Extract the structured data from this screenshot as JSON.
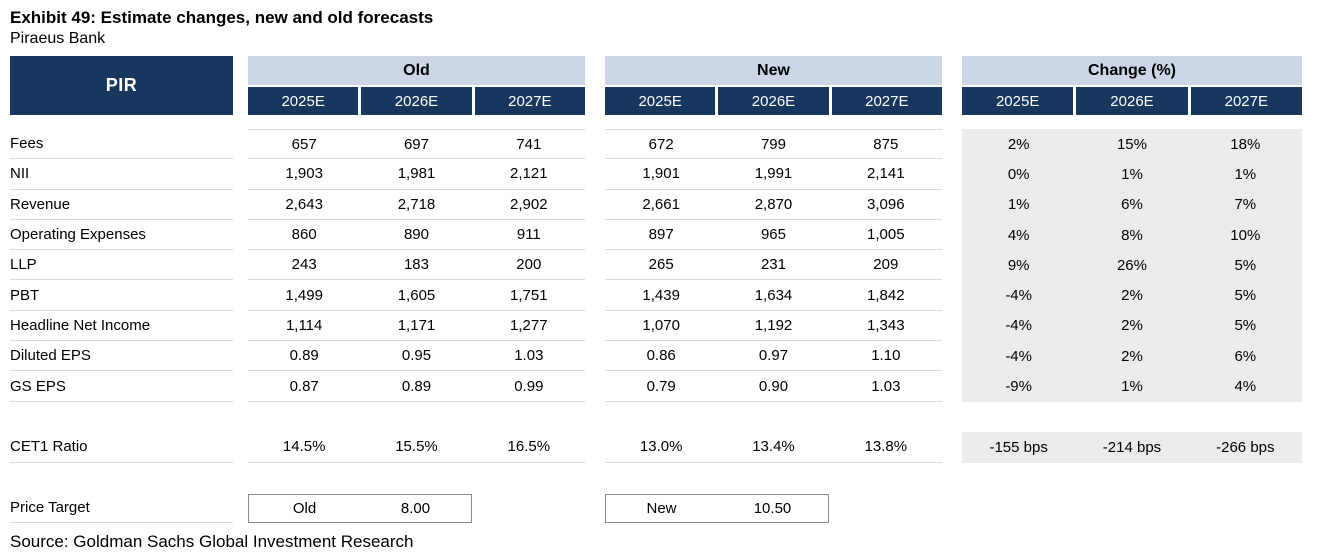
{
  "title": "Exhibit 49: Estimate changes, new and old forecasts",
  "subtitle": "Piraeus Bank",
  "source": "Source: Goldman Sachs Global Investment Research",
  "colors": {
    "navy": "#17375E",
    "band_blue": "#CCD6E6",
    "change_bg": "#EBEBEB",
    "row_line": "#D9D9D9",
    "box_border": "#8C8C8C"
  },
  "table": {
    "ticker": "PIR",
    "groups": [
      {
        "label": "Old",
        "years": [
          "2025E",
          "2026E",
          "2027E"
        ]
      },
      {
        "label": "New",
        "years": [
          "2025E",
          "2026E",
          "2027E"
        ]
      },
      {
        "label": "Change (%)",
        "years": [
          "2025E",
          "2026E",
          "2027E"
        ]
      }
    ],
    "rows": [
      {
        "label": "Fees",
        "old": [
          "657",
          "697",
          "741"
        ],
        "new": [
          "672",
          "799",
          "875"
        ],
        "change": [
          "2%",
          "15%",
          "18%"
        ]
      },
      {
        "label": "NII",
        "old": [
          "1,903",
          "1,981",
          "2,121"
        ],
        "new": [
          "1,901",
          "1,991",
          "2,141"
        ],
        "change": [
          "0%",
          "1%",
          "1%"
        ]
      },
      {
        "label": "Revenue",
        "old": [
          "2,643",
          "2,718",
          "2,902"
        ],
        "new": [
          "2,661",
          "2,870",
          "3,096"
        ],
        "change": [
          "1%",
          "6%",
          "7%"
        ]
      },
      {
        "label": "Operating Expenses",
        "old": [
          "860",
          "890",
          "911"
        ],
        "new": [
          "897",
          "965",
          "1,005"
        ],
        "change": [
          "4%",
          "8%",
          "10%"
        ]
      },
      {
        "label": "LLP",
        "old": [
          "243",
          "183",
          "200"
        ],
        "new": [
          "265",
          "231",
          "209"
        ],
        "change": [
          "9%",
          "26%",
          "5%"
        ]
      },
      {
        "label": "PBT",
        "old": [
          "1,499",
          "1,605",
          "1,751"
        ],
        "new": [
          "1,439",
          "1,634",
          "1,842"
        ],
        "change": [
          "-4%",
          "2%",
          "5%"
        ]
      },
      {
        "label": "Headline Net Income",
        "old": [
          "1,114",
          "1,171",
          "1,277"
        ],
        "new": [
          "1,070",
          "1,192",
          "1,343"
        ],
        "change": [
          "-4%",
          "2%",
          "5%"
        ]
      },
      {
        "label": "Diluted EPS",
        "old": [
          "0.89",
          "0.95",
          "1.03"
        ],
        "new": [
          "0.86",
          "0.97",
          "1.10"
        ],
        "change": [
          "-4%",
          "2%",
          "6%"
        ]
      },
      {
        "label": "GS EPS",
        "old": [
          "0.87",
          "0.89",
          "0.99"
        ],
        "new": [
          "0.79",
          "0.90",
          "1.03"
        ],
        "change": [
          "-9%",
          "1%",
          "4%"
        ]
      }
    ],
    "cet1": {
      "label": "CET1 Ratio",
      "old": [
        "14.5%",
        "15.5%",
        "16.5%"
      ],
      "new": [
        "13.0%",
        "13.4%",
        "13.8%"
      ],
      "change": [
        "-155 bps",
        "-214 bps",
        "-266 bps"
      ]
    },
    "price_target": {
      "label": "Price Target",
      "old_tag": "Old",
      "old_value": "8.00",
      "new_tag": "New",
      "new_value": "10.50"
    }
  }
}
